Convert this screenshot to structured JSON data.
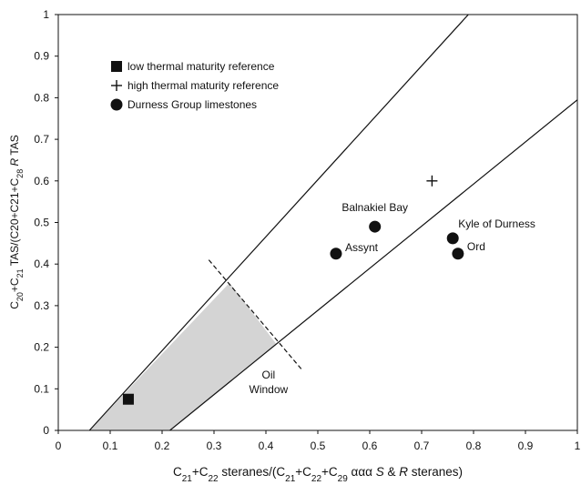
{
  "chart_data": {
    "type": "scatter",
    "xlim": [
      0,
      1
    ],
    "ylim": [
      0,
      1
    ],
    "x_ticks": [
      "0",
      "0.1",
      "0.2",
      "0.3",
      "0.4",
      "0.5",
      "0.6",
      "0.7",
      "0.8",
      "0.9",
      "1"
    ],
    "y_ticks": [
      "0",
      "0.1",
      "0.2",
      "0.3",
      "0.4",
      "0.5",
      "0.6",
      "0.7",
      "0.8",
      "0.9",
      "1"
    ],
    "xlabel": {
      "parts": [
        {
          "t": "C"
        },
        {
          "t": "21",
          "sub": true
        },
        {
          "t": "+C"
        },
        {
          "t": "22",
          "sub": true
        },
        {
          "t": " steranes/(C"
        },
        {
          "t": "21",
          "sub": true
        },
        {
          "t": "+C"
        },
        {
          "t": "22",
          "sub": true
        },
        {
          "t": "+C"
        },
        {
          "t": "29",
          "sub": true
        },
        {
          "t": " ααα "
        },
        {
          "t": "S",
          "it": true
        },
        {
          "t": " & "
        },
        {
          "t": "R",
          "it": true
        },
        {
          "t": " steranes)"
        }
      ]
    },
    "ylabel": {
      "parts": [
        {
          "t": "C"
        },
        {
          "t": "20",
          "sub": true
        },
        {
          "t": "+C"
        },
        {
          "t": "21",
          "sub": true
        },
        {
          "t": " TAS/(C20+C21+C"
        },
        {
          "t": "28",
          "sub": true
        },
        {
          "t": " "
        },
        {
          "t": "R",
          "it": true
        },
        {
          "t": " TAS"
        }
      ]
    },
    "lines": [
      {
        "name": "upper-boundary",
        "points": [
          [
            0.06,
            0
          ],
          [
            0.79,
            1
          ]
        ]
      },
      {
        "name": "lower-boundary",
        "points": [
          [
            0.215,
            0
          ],
          [
            1.0,
            0.795
          ]
        ]
      },
      {
        "name": "oil-window-limit",
        "points": [
          [
            0.29,
            0.41
          ],
          [
            0.47,
            0.145
          ]
        ],
        "dashed": true
      }
    ],
    "shaded_region": [
      [
        0.06,
        0
      ],
      [
        0.215,
        0
      ],
      [
        0.42,
        0.208
      ],
      [
        0.33,
        0.355
      ]
    ],
    "series": [
      {
        "name": "low thermal maturity reference",
        "marker": "square",
        "points": [
          {
            "x": 0.135,
            "y": 0.075,
            "label": ""
          }
        ]
      },
      {
        "name": "high thermal maturity reference",
        "marker": "plus",
        "points": [
          {
            "x": 0.72,
            "y": 0.6,
            "label": ""
          }
        ]
      },
      {
        "name": "Durness Group limestones",
        "marker": "circle",
        "points": [
          {
            "x": 0.61,
            "y": 0.49,
            "label": "Balnakiel Bay"
          },
          {
            "x": 0.535,
            "y": 0.425,
            "label": "Assynt"
          },
          {
            "x": 0.76,
            "y": 0.462,
            "label": "Kyle of Durness"
          },
          {
            "x": 0.77,
            "y": 0.425,
            "label": "Ord"
          }
        ]
      }
    ],
    "annotations": [
      {
        "text": "Oil",
        "x": 0.405,
        "y": 0.125
      },
      {
        "text": "Window",
        "x": 0.405,
        "y": 0.09
      }
    ],
    "legend_position": "top-left",
    "grid": false,
    "colors": {
      "shade": "#d4d4d4",
      "ink": "#111111"
    }
  }
}
